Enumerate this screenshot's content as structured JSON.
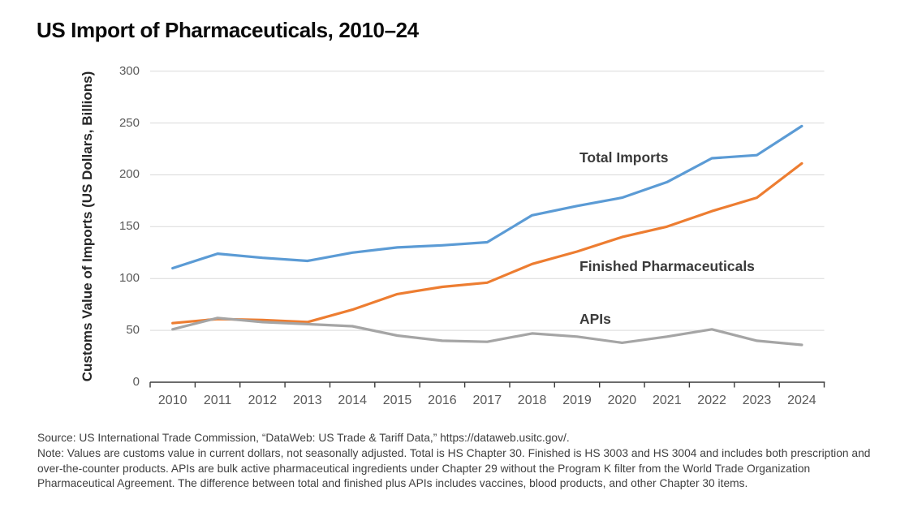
{
  "chart_data": {
    "type": "line",
    "title": "US Import of Pharmaceuticals, 2010–24",
    "ylabel": "Customs Value of Imports (US Dollars, Billions)",
    "xlabel": "",
    "ylim": [
      0,
      300
    ],
    "ytick_step": 50,
    "ytick_labels": [
      "0",
      "50",
      "100",
      "150",
      "200",
      "250",
      "300"
    ],
    "grid": "horizontal gridlines on, vertical off",
    "legend_position": "inline labels beside lines",
    "categories": [
      "2010",
      "2011",
      "2012",
      "2013",
      "2014",
      "2015",
      "2016",
      "2017",
      "2018",
      "2019",
      "2020",
      "2021",
      "2022",
      "2023",
      "2024"
    ],
    "series": [
      {
        "name": "Total Imports",
        "color": "#5B9BD5",
        "values": [
          110,
          124,
          120,
          117,
          125,
          130,
          132,
          135,
          161,
          170,
          178,
          193,
          216,
          219,
          247
        ]
      },
      {
        "name": "Finished Pharmaceuticals",
        "color": "#ED7D31",
        "values": [
          57,
          61,
          60,
          58,
          70,
          85,
          92,
          96,
          114,
          126,
          140,
          150,
          165,
          178,
          211
        ]
      },
      {
        "name": "APIs",
        "color": "#A5A5A5",
        "values": [
          51,
          62,
          58,
          56,
          54,
          45,
          40,
          39,
          47,
          44,
          38,
          44,
          51,
          40,
          36
        ]
      }
    ],
    "colors": {
      "grid": "#D9D9D9",
      "axis": "#3B3B3B",
      "tick_label": "#595959",
      "annotation": "#3B3B3B",
      "title": "#0A0A0A"
    }
  },
  "footer": {
    "source": "Source: US International Trade Commission, “DataWeb: US Trade & Tariff Data,” https://dataweb.usitc.gov/.",
    "note": "Note: Values are customs value in current dollars, not seasonally adjusted. Total is HS Chapter 30. Finished is HS 3003 and HS 3004 and includes both prescription and over-the-counter products. APIs are bulk active pharmaceutical ingredients under Chapter 29 without the Program K filter from the World Trade Organization Pharmaceutical Agreement. The difference between total and finished plus APIs includes vaccines, blood products, and other Chapter 30 items."
  }
}
